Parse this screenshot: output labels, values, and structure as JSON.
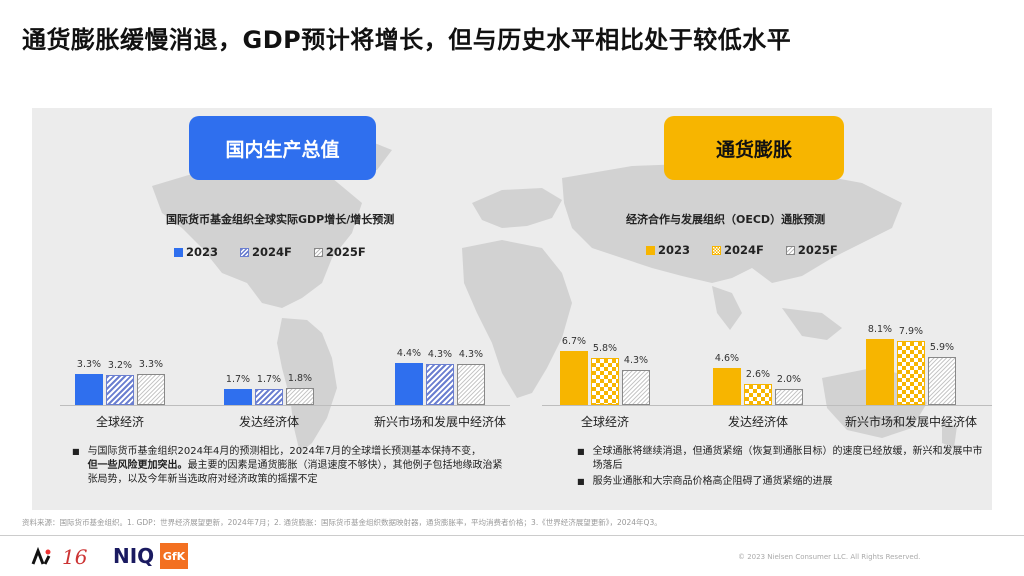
{
  "title": "通货膨胀缓慢消退，GDP预计将增长，但与历史水平相比处于较低水平",
  "colors": {
    "gdp_accent": "#2f6fee",
    "inflation_accent": "#f7b500",
    "panel_bg": "#ececec"
  },
  "gdp": {
    "pill_label": "国内生产总值",
    "chart_title": "国际货币基金组织全球实际GDP增长/增长预测",
    "legend": [
      "2023",
      "2024F",
      "2025F"
    ],
    "bullets": [
      {
        "text_normal": "与国际货币基金组织2024年4月的预测相比，2024年7月的全球增长预测基本保持不变，",
        "text_bold": "但一些风险更加突出。",
        "text_tail": "最主要的因素是通货膨胀（消退速度不够快），其他例子包括地缘政治紧张局势，以及今年新当选政府对经济政策的摇摆不定"
      }
    ]
  },
  "inflation": {
    "pill_label": "通货膨胀",
    "chart_title": "经济合作与发展组织（OECD）通胀预测",
    "legend": [
      "2023",
      "2024F",
      "2025F"
    ],
    "bullets": [
      {
        "text": "全球通胀将继续消退，但通货紧缩（恢复到通胀目标）的速度已经放缓，新兴和发展中市场落后"
      },
      {
        "text": "服务业通胀和大宗商品价格高企阻碍了通货紧缩的进展"
      }
    ]
  },
  "chart_data": [
    {
      "type": "bar",
      "title": "国际货币基金组织全球实际GDP增长/增长预测",
      "categories": [
        "全球经济",
        "发达经济体",
        "新兴市场和发展中经济体"
      ],
      "series": [
        {
          "name": "2023",
          "values": [
            3.3,
            1.7,
            4.4
          ],
          "labels": [
            "3.3%",
            "1.7%",
            "4.4%"
          ]
        },
        {
          "name": "2024F",
          "values": [
            3.2,
            1.7,
            4.3
          ],
          "labels": [
            "3.2%",
            "1.7%",
            "4.3%"
          ]
        },
        {
          "name": "2025F",
          "values": [
            3.3,
            1.8,
            4.3
          ],
          "labels": [
            "3.3%",
            "1.8%",
            "4.3%"
          ]
        }
      ]
    },
    {
      "type": "bar",
      "title": "经济合作与发展组织（OECD）通胀预测",
      "categories": [
        "全球经济",
        "发达经济体",
        "新兴市场和发展中经济体"
      ],
      "series": [
        {
          "name": "2023",
          "values": [
            6.7,
            4.6,
            8.1
          ],
          "labels": [
            "6.7%",
            "4.6%",
            "8.1%"
          ]
        },
        {
          "name": "2024F",
          "values": [
            5.8,
            2.6,
            7.9
          ],
          "labels": [
            "5.8%",
            "2.6%",
            "7.9%"
          ]
        },
        {
          "name": "2025F",
          "values": [
            4.3,
            2.0,
            5.9
          ],
          "labels": [
            "4.3%",
            "2.0%",
            "5.9%"
          ]
        }
      ]
    }
  ],
  "footer": {
    "source": "资料来源：国际货币基金组织。1. GDP：世界经济展望更新，2024年7月；2. 通货膨胀：国际货币基金组织数据映射器，通货膨胀率，平均消费者价格；3.《世界经济展望更新》，2024年Q3。",
    "copyright": "© 2023 Nielsen Consumer LLC. All Rights Reserved.",
    "logo_niq": "NIQ",
    "logo_gfk": "GfK",
    "logo_16": "16"
  }
}
